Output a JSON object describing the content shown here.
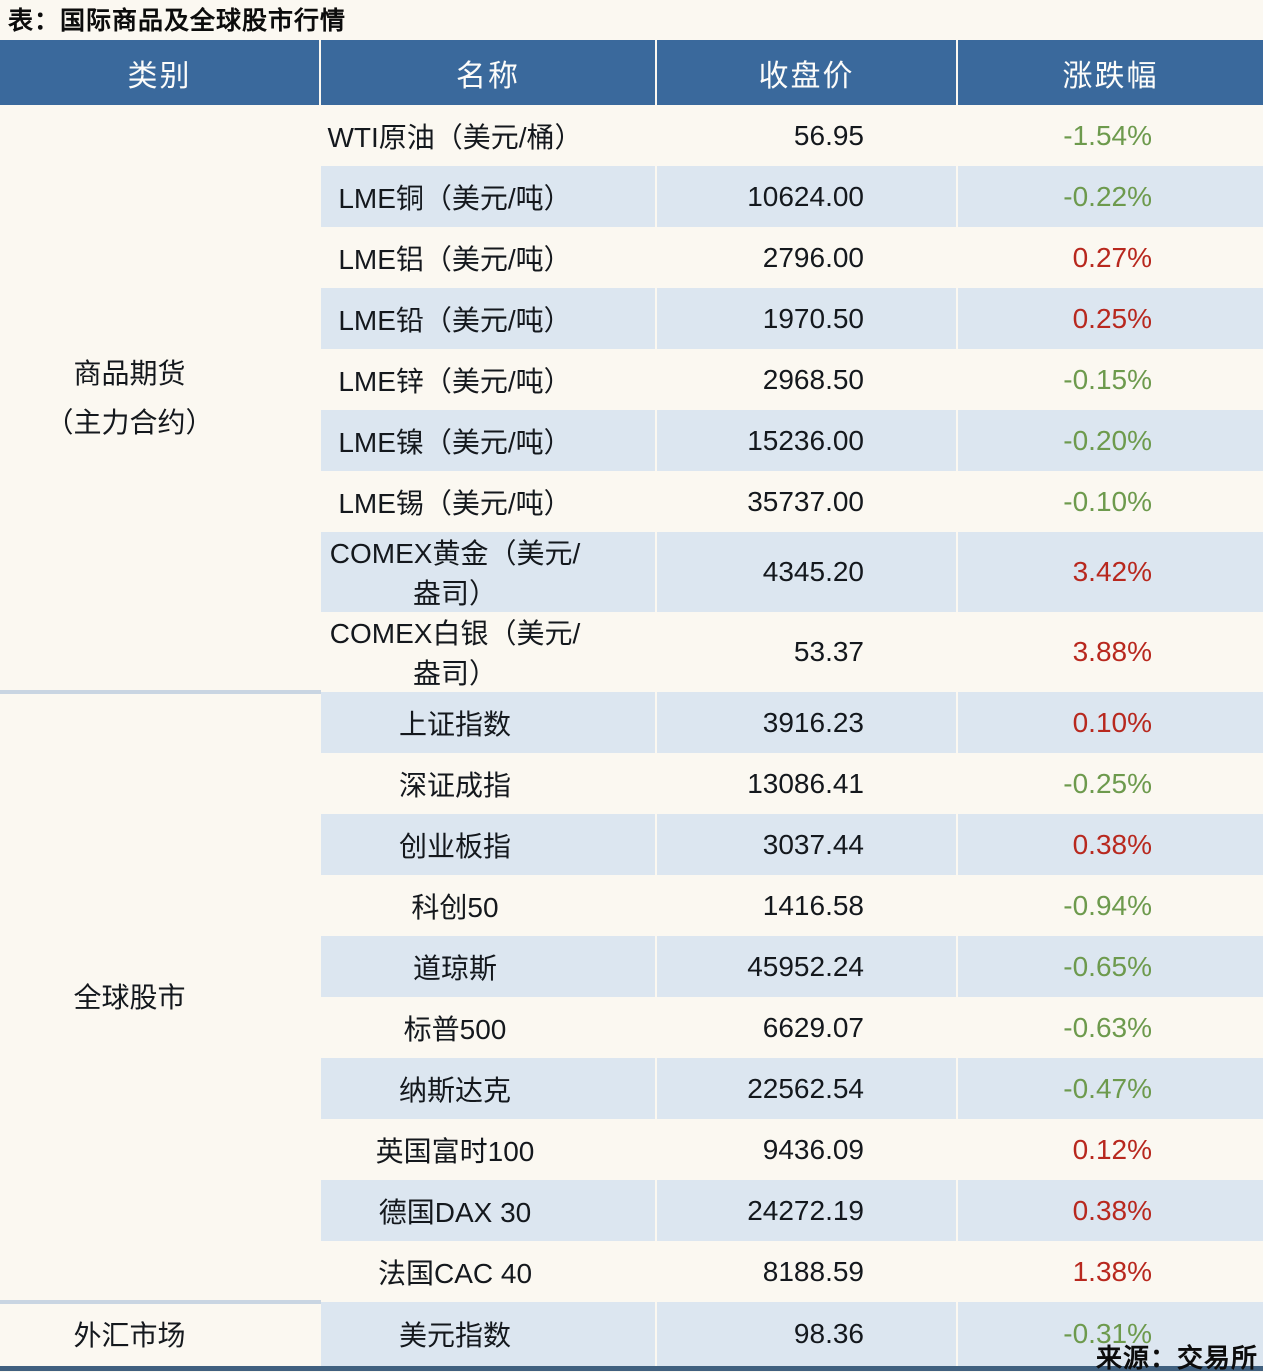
{
  "title": "表：国际商品及全球股市行情",
  "source_note": "来源：交易所",
  "colors": {
    "header_bg": "#3a699c",
    "stripe_bg": "#dce6f0",
    "up_red": "#b8281e",
    "down_green": "#6d9a4d",
    "group_separator": "#c9d5e2",
    "bottom_border": "#40607f",
    "page_bg": "#fbf8f1"
  },
  "chart_data": {
    "type": "table",
    "title": "国际商品及全球股市行情",
    "columns": [
      "类别",
      "名称",
      "收盘价",
      "涨跌幅"
    ],
    "groups": [
      {
        "category": "商品期货（主力合约）",
        "category_lines": [
          "商品期货",
          "（主力合约）"
        ],
        "rows": [
          {
            "name": "WTI原油（美元/桶）",
            "close": "56.95",
            "change": "-1.54%",
            "direction": "down"
          },
          {
            "name": "LME铜（美元/吨）",
            "close": "10624.00",
            "change": "-0.22%",
            "direction": "down"
          },
          {
            "name": "LME铝（美元/吨）",
            "close": "2796.00",
            "change": "0.27%",
            "direction": "up"
          },
          {
            "name": "LME铅（美元/吨）",
            "close": "1970.50",
            "change": "0.25%",
            "direction": "up"
          },
          {
            "name": "LME锌（美元/吨）",
            "close": "2968.50",
            "change": "-0.15%",
            "direction": "down"
          },
          {
            "name": "LME镍（美元/吨）",
            "close": "15236.00",
            "change": "-0.20%",
            "direction": "down"
          },
          {
            "name": "LME锡（美元/吨）",
            "close": "35737.00",
            "change": "-0.10%",
            "direction": "down"
          },
          {
            "name": "COMEX黄金（美元/盎司）",
            "close": "4345.20",
            "change": "3.42%",
            "direction": "up"
          },
          {
            "name": "COMEX白银（美元/盎司）",
            "close": "53.37",
            "change": "3.88%",
            "direction": "up"
          }
        ]
      },
      {
        "category": "全球股市",
        "category_lines": [
          "全球股市"
        ],
        "rows": [
          {
            "name": "上证指数",
            "close": "3916.23",
            "change": "0.10%",
            "direction": "up"
          },
          {
            "name": "深证成指",
            "close": "13086.41",
            "change": "-0.25%",
            "direction": "down"
          },
          {
            "name": "创业板指",
            "close": "3037.44",
            "change": "0.38%",
            "direction": "up"
          },
          {
            "name": "科创50",
            "close": "1416.58",
            "change": "-0.94%",
            "direction": "down"
          },
          {
            "name": "道琼斯",
            "close": "45952.24",
            "change": "-0.65%",
            "direction": "down"
          },
          {
            "name": "标普500",
            "close": "6629.07",
            "change": "-0.63%",
            "direction": "down"
          },
          {
            "name": "纳斯达克",
            "close": "22562.54",
            "change": "-0.47%",
            "direction": "down"
          },
          {
            "name": "英国富时100",
            "close": "9436.09",
            "change": "0.12%",
            "direction": "up"
          },
          {
            "name": "德国DAX 30",
            "close": "24272.19",
            "change": "0.38%",
            "direction": "up"
          },
          {
            "name": "法国CAC 40",
            "close": "8188.59",
            "change": "1.38%",
            "direction": "up"
          }
        ]
      },
      {
        "category": "外汇市场",
        "category_lines": [
          "外汇市场"
        ],
        "rows": [
          {
            "name": "美元指数",
            "close": "98.36",
            "change": "-0.31%",
            "direction": "down"
          }
        ]
      }
    ]
  }
}
